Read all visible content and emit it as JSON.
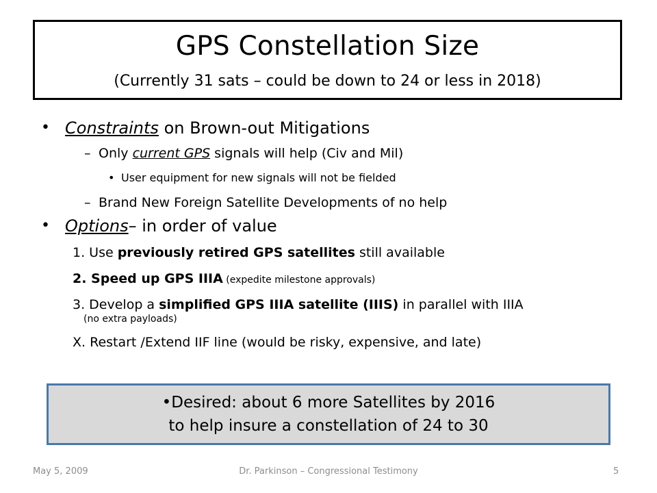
{
  "slide": {
    "title": "GPS Constellation Size",
    "subtitle": "(Currently 31 sats – could be down to 24 or less in 2018)"
  },
  "bullets": {
    "constraints": {
      "marker": "•",
      "lead": "Constraints",
      "rest": " on Brown-out Mitigations",
      "item1_dash": "–",
      "item1_a": "Only ",
      "item1_u": "current GPS",
      "item1_b": " signals will help (Civ and Mil)",
      "sub_marker": "•",
      "sub_text": "User equipment for new signals will not be fielded",
      "item2_dash": "–",
      "item2_text": "Brand New Foreign Satellite Developments of no help"
    },
    "options": {
      "marker": "•",
      "lead": "Options",
      "rest": "– in order of value",
      "o1_pre": "1. Use ",
      "o1_bold": "previously retired GPS satellites",
      "o1_post": " still available",
      "o2_bold": "2. Speed up GPS IIIA",
      "o2_small": " (expedite milestone approvals)",
      "o3_pre": "3.  Develop a ",
      "o3_bold": "simplified GPS IIIA satellite (IIIS)",
      "o3_post": " in parallel with IIIA",
      "o3_small": "(no extra payloads)",
      "oX": "X. Restart /Extend IIF line  (would be risky, expensive, and late)"
    }
  },
  "desired": {
    "marker": "•",
    "line1": "Desired:  about 6 more Satellites by 2016",
    "line2": "to help insure a constellation of 24 to 30"
  },
  "footer": {
    "date": "May 5, 2009",
    "center": "Dr. Parkinson – Congressional Testimony",
    "page": "5"
  }
}
